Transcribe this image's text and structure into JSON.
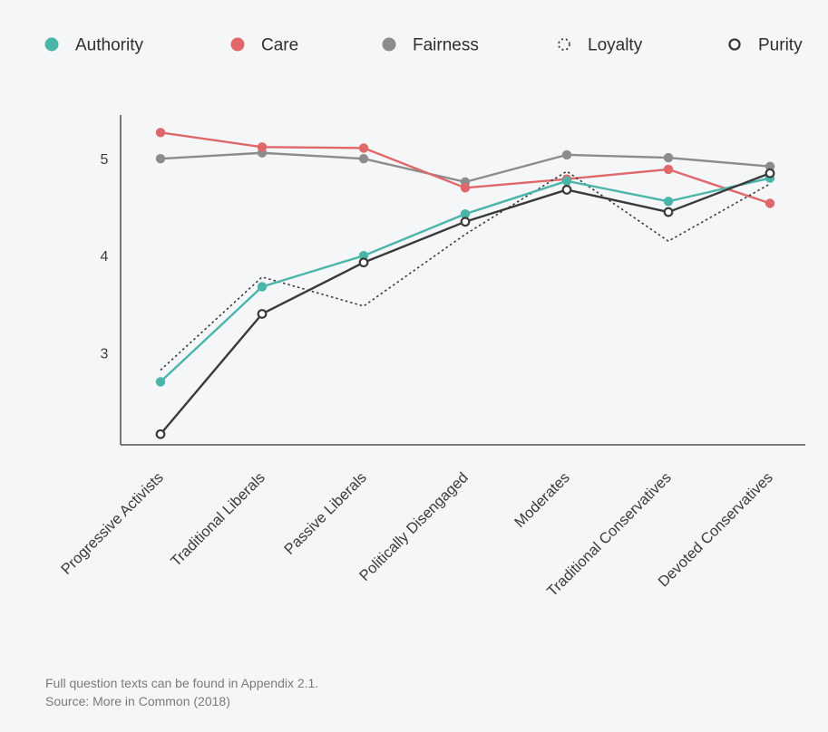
{
  "chart_data": {
    "type": "line",
    "categories": [
      "Progressive Activists",
      "Traditional Liberals",
      "Passive Liberals",
      "Politically Disengaged",
      "Moderates",
      "Traditional Conservatives",
      "Devoted Conservatives"
    ],
    "ylim": [
      2.05,
      5.45
    ],
    "yticks": [
      3,
      4,
      5
    ],
    "grid": false,
    "legend_position": "top",
    "series": [
      {
        "name": "Authority",
        "color": "#4bb5a9",
        "style": "solid-filled",
        "values": [
          2.7,
          3.68,
          4.0,
          4.43,
          4.77,
          4.56,
          4.8
        ]
      },
      {
        "name": "Care",
        "color": "#e0676a",
        "style": "solid-filled",
        "values": [
          5.27,
          5.12,
          5.11,
          4.7,
          4.79,
          4.89,
          4.54
        ]
      },
      {
        "name": "Fairness",
        "color": "#8c8c8c",
        "style": "solid-filled",
        "values": [
          5.0,
          5.06,
          5.0,
          4.76,
          5.04,
          5.01,
          4.92
        ]
      },
      {
        "name": "Loyalty",
        "color": "#3a3a3a",
        "style": "dotted",
        "values": [
          2.82,
          3.78,
          3.48,
          4.22,
          4.87,
          4.15,
          4.74
        ]
      },
      {
        "name": "Purity",
        "color": "#3a3a3a",
        "style": "solid-hollow",
        "values": [
          2.16,
          3.4,
          3.93,
          4.35,
          4.68,
          4.45,
          4.85
        ]
      }
    ]
  },
  "footnote": {
    "line1": "Full question texts can be found in Appendix 2.1.",
    "line2": "Source: More in Common (2018)"
  }
}
